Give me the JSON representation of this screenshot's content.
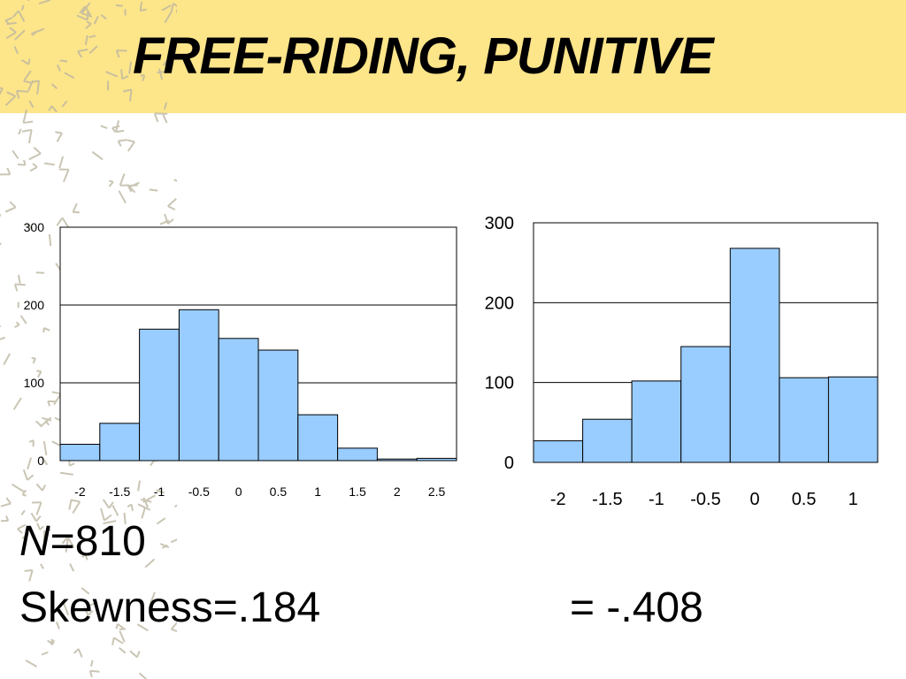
{
  "slide": {
    "title": "FREE-RIDING, PUNITIVE",
    "n_symbol": "N",
    "n_value": "=810",
    "skewness_left": "Skewness=.184",
    "skewness_right": "= -.408"
  },
  "colors": {
    "bar_fill": "#99ccff",
    "title_band": "#fde58a"
  },
  "chart_data": [
    {
      "type": "bar",
      "title": "",
      "xlabel": "",
      "ylabel": "",
      "categories": [
        "-2",
        "-1.5",
        "-1",
        "-0.5",
        "0",
        "0.5",
        "1",
        "1.5",
        "2",
        "2.5"
      ],
      "values": [
        21,
        48,
        169,
        194,
        157,
        142,
        59,
        16,
        2,
        3
      ],
      "ylim": [
        0,
        300
      ],
      "yticks": [
        "0",
        "100",
        "200",
        "300"
      ],
      "grid": true
    },
    {
      "type": "bar",
      "title": "",
      "xlabel": "",
      "ylabel": "",
      "categories": [
        "-2",
        "-1.5",
        "-1",
        "-0.5",
        "0",
        "0.5",
        "1"
      ],
      "values": [
        27,
        54,
        102,
        145,
        268,
        106,
        107
      ],
      "ylim": [
        0,
        300
      ],
      "yticks": [
        "0",
        "100",
        "200",
        "300"
      ],
      "grid": true
    }
  ]
}
